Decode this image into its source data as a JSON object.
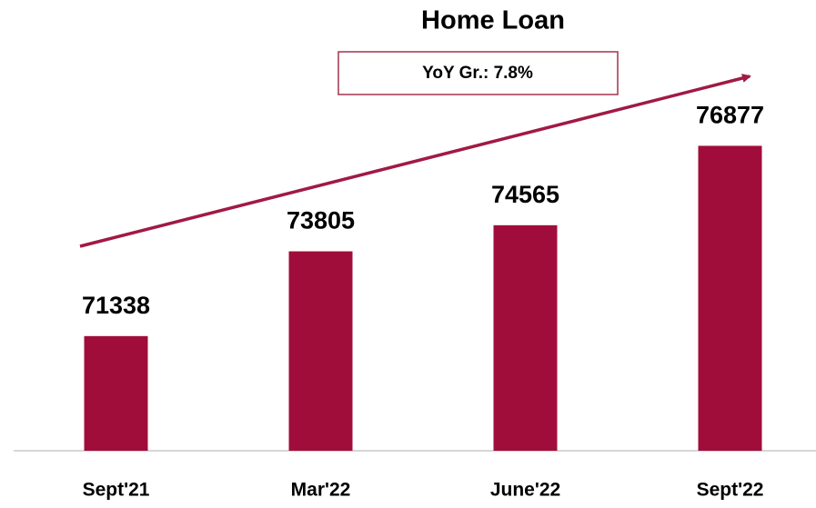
{
  "chart_data": {
    "type": "bar",
    "title": "Home Loan",
    "annotation": "YoY Gr.: 7.8%",
    "categories": [
      "Sept'21",
      "Mar'22",
      "June'22",
      "Sept'22"
    ],
    "values": [
      71338,
      73805,
      74565,
      76877
    ],
    "color": "#a10d3b",
    "ylim": [
      68000,
      78000
    ]
  }
}
